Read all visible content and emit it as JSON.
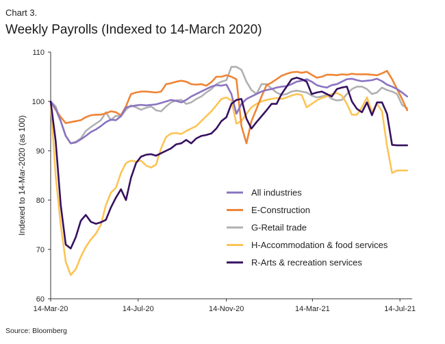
{
  "chart_label": "Chart 3.",
  "source": "Source: Bloomberg",
  "colors": {
    "All industries": "#8a73c0",
    "E-Construction": "#ef8434",
    "G-Retail trade": "#b0b0b0",
    "H-Accommodation & food services": "#fcc454",
    "R-Arts & recreation services": "#35105f"
  },
  "chart_data": {
    "type": "line",
    "title": "Weekly Payrolls (Indexed to 14-March 2020)",
    "xlabel": "",
    "ylabel": "Indexed to 14-Mar-2020 (as 100)",
    "ylim": [
      60,
      110
    ],
    "yticks": [
      60,
      70,
      80,
      90,
      100,
      110
    ],
    "xticks": [
      "14-Mar-20",
      "14-Jul-20",
      "14-Nov-20",
      "14-Mar-21",
      "14-Jul-21"
    ],
    "xlim": [
      "2020-03-14",
      "2021-07-31"
    ],
    "legend": "inside-bottom-right",
    "grid": false,
    "x": [
      "2020-03-14",
      "2020-03-21",
      "2020-03-28",
      "2020-04-04",
      "2020-04-11",
      "2020-04-18",
      "2020-04-25",
      "2020-05-02",
      "2020-05-09",
      "2020-05-16",
      "2020-05-23",
      "2020-05-30",
      "2020-06-06",
      "2020-06-13",
      "2020-06-20",
      "2020-06-27",
      "2020-07-04",
      "2020-07-11",
      "2020-07-18",
      "2020-07-25",
      "2020-08-01",
      "2020-08-08",
      "2020-08-15",
      "2020-08-22",
      "2020-08-29",
      "2020-09-05",
      "2020-09-12",
      "2020-09-19",
      "2020-09-26",
      "2020-10-03",
      "2020-10-10",
      "2020-10-17",
      "2020-10-24",
      "2020-10-31",
      "2020-11-07",
      "2020-11-14",
      "2020-11-21",
      "2020-11-28",
      "2020-12-05",
      "2020-12-12",
      "2020-12-19",
      "2020-12-26",
      "2021-01-02",
      "2021-01-09",
      "2021-01-16",
      "2021-01-23",
      "2021-01-30",
      "2021-02-06",
      "2021-02-13",
      "2021-02-20",
      "2021-02-27",
      "2021-03-06",
      "2021-03-13",
      "2021-03-20",
      "2021-03-27",
      "2021-04-03",
      "2021-04-10",
      "2021-04-17",
      "2021-04-24",
      "2021-05-01",
      "2021-05-08",
      "2021-05-15",
      "2021-05-22",
      "2021-05-29",
      "2021-06-05",
      "2021-06-12",
      "2021-06-19",
      "2021-06-26",
      "2021-07-03",
      "2021-07-10",
      "2021-07-17",
      "2021-07-24"
    ],
    "series": [
      {
        "name": "All industries",
        "values": [
          100,
          98.5,
          96,
          93,
          91.5,
          91.7,
          92.3,
          93,
          93.8,
          94.3,
          95,
          95.8,
          96.3,
          96.2,
          97,
          98.8,
          99,
          99.2,
          99.3,
          99.2,
          99.3,
          99.4,
          99.7,
          100,
          100.3,
          100.1,
          99.8,
          100.3,
          101,
          101.5,
          102,
          102.5,
          103,
          103.3,
          103.2,
          103.4,
          101.5,
          97.5,
          99.5,
          100.5,
          101,
          101.5,
          102,
          102.3,
          102.5,
          102.8,
          103,
          103.1,
          103.5,
          104,
          104.2,
          104.5,
          104,
          103.3,
          103,
          102.8,
          103.3,
          103.5,
          104,
          104.5,
          104.6,
          104.3,
          104.1,
          104.2,
          104.3,
          104.6,
          104.1,
          103.4,
          103,
          102.5,
          101.8,
          101
        ]
      },
      {
        "name": "E-Construction",
        "values": [
          100,
          98.3,
          96.8,
          95.6,
          95.8,
          96,
          96.2,
          96.8,
          97.2,
          97.3,
          97.3,
          97.6,
          98,
          97.8,
          97.2,
          99,
          101.5,
          101.8,
          102,
          102,
          101.9,
          101.8,
          102,
          103.5,
          103.7,
          104,
          104.2,
          104,
          103.5,
          103.4,
          103.5,
          103.2,
          103.9,
          105,
          105,
          105.3,
          105,
          104.5,
          95,
          91.5,
          96,
          98.5,
          101,
          103.3,
          103.8,
          104.5,
          105.2,
          105.6,
          105.9,
          106,
          105.8,
          106,
          105.4,
          104.8,
          105,
          105.4,
          105.4,
          105.3,
          105.5,
          105.4,
          105.6,
          105.5,
          105.5,
          105.5,
          105.4,
          105.3,
          105.7,
          106.2,
          104.5,
          102.5,
          100.5,
          98.2
        ]
      },
      {
        "name": "G-Retail trade",
        "values": [
          100,
          99,
          96,
          93,
          91.5,
          91.8,
          92.5,
          94,
          94.8,
          95.5,
          96.2,
          97.8,
          96.2,
          97.1,
          97,
          98.3,
          99.2,
          98.8,
          98.3,
          98.7,
          99,
          98.2,
          98,
          99,
          99.8,
          100.2,
          100.3,
          99.5,
          99.8,
          100.5,
          101,
          101.8,
          102.5,
          103.5,
          104,
          104.3,
          107,
          107,
          106.4,
          104,
          102.3,
          101.5,
          103.5,
          103.5,
          102.6,
          101.8,
          101.3,
          101.5,
          102,
          102.2,
          102,
          101.8,
          101.2,
          100.8,
          101,
          101.3,
          100.5,
          100.2,
          100.3,
          101.5,
          102.5,
          103,
          103,
          102.5,
          101.5,
          101.8,
          102.8,
          102.3,
          102,
          101.5,
          99.3,
          98.6
        ]
      },
      {
        "name": "H-Accommodation & food services",
        "values": [
          100,
          85,
          75,
          67.5,
          64.8,
          66,
          68.5,
          70.5,
          72,
          73.2,
          75,
          79,
          81.5,
          82.5,
          85.5,
          87.5,
          88,
          87.8,
          88,
          87,
          86.6,
          87.2,
          90.5,
          92.8,
          93.5,
          93.6,
          93.4,
          94,
          94.5,
          95,
          96,
          97,
          98,
          99.2,
          100.5,
          100.8,
          100.2,
          95.5,
          96,
          97.5,
          98.8,
          99.5,
          100,
          100.3,
          100.5,
          100.7,
          100.5,
          100.8,
          101.2,
          101.5,
          101.3,
          98.8,
          99.5,
          100.2,
          100.7,
          101,
          101.5,
          101.7,
          101.2,
          99.5,
          97.3,
          97.3,
          98.8,
          100.8,
          97.8,
          99.5,
          98,
          91,
          85.5,
          86,
          86,
          86
        ]
      },
      {
        "name": "R-Arts & recreation services",
        "values": [
          100,
          92,
          79,
          71,
          70.2,
          72.5,
          75.8,
          77,
          75.6,
          75.2,
          75.5,
          76,
          78.5,
          80.5,
          82.2,
          80,
          84.5,
          87.5,
          88.8,
          89.2,
          89.3,
          89,
          89.5,
          90,
          90.5,
          91.3,
          91.5,
          92.2,
          91.5,
          92.5,
          93,
          93.2,
          93.5,
          94.5,
          96,
          96.8,
          99.5,
          100.3,
          100.5,
          96.5,
          94.5,
          95.8,
          97,
          98.2,
          99.5,
          99.5,
          101.5,
          103,
          104.5,
          104.8,
          104.5,
          104,
          101.5,
          101.8,
          102,
          101.5,
          101,
          102.5,
          102.8,
          103,
          100,
          98.5,
          97.8,
          99.8,
          97.2,
          99.8,
          99.8,
          97.5,
          91.2,
          91.1,
          91.1,
          91.1
        ]
      }
    ]
  }
}
